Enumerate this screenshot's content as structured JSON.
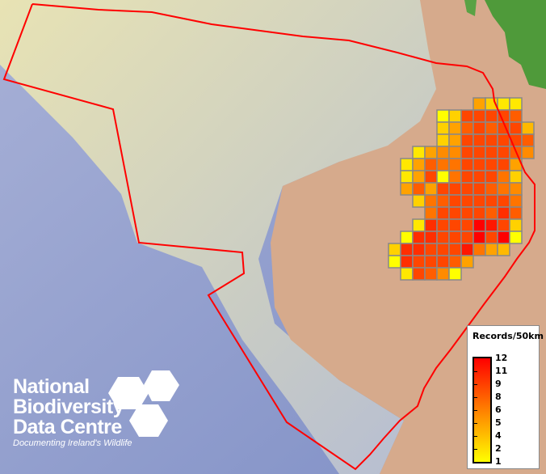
{
  "legend": {
    "title": "Records/50km",
    "labels": [
      "12",
      "11",
      "9",
      "8",
      "6",
      "5",
      "4",
      "2",
      "1"
    ],
    "color_min": "#ffff00",
    "color_mid": "#ff8000",
    "color_max": "#ff0000"
  },
  "logo": {
    "line1": "National",
    "line2": "Biodiversity",
    "line3": "Data Centre",
    "tagline": "Documenting Ireland's Wildlife"
  },
  "colors": {
    "boundary": "#ff0000",
    "grid_outline": "#888888",
    "ocean": "#8f9ccc",
    "shelf": "#e6e0b0",
    "land": "#d6aa8c",
    "vegetation": "#4f9a3a"
  },
  "grid_records": [
    [
      0,
      0,
      0,
      0,
      0,
      0,
      0,
      5,
      3,
      2,
      2,
      0
    ],
    [
      0,
      0,
      0,
      0,
      1,
      3,
      9,
      9,
      9,
      9,
      8,
      0
    ],
    [
      0,
      0,
      0,
      0,
      3,
      5,
      8,
      9,
      8,
      9,
      9,
      4
    ],
    [
      0,
      0,
      0,
      0,
      3,
      5,
      9,
      9,
      9,
      9,
      9,
      8
    ],
    [
      0,
      0,
      2,
      5,
      6,
      6,
      9,
      9,
      9,
      9,
      8,
      6
    ],
    [
      0,
      2,
      5,
      8,
      7,
      7,
      9,
      9,
      9,
      9,
      5,
      0
    ],
    [
      0,
      2,
      5,
      9,
      1,
      7,
      9,
      9,
      9,
      7,
      3,
      0
    ],
    [
      0,
      5,
      8,
      5,
      9,
      9,
      9,
      9,
      8,
      7,
      6,
      0
    ],
    [
      0,
      0,
      3,
      7,
      8,
      9,
      9,
      9,
      9,
      9,
      7,
      0
    ],
    [
      0,
      0,
      0,
      7,
      9,
      9,
      9,
      9,
      8,
      10,
      8,
      0
    ],
    [
      0,
      0,
      2,
      10,
      9,
      9,
      9,
      12,
      11,
      9,
      3,
      0
    ],
    [
      0,
      1,
      10,
      10,
      9,
      9,
      9,
      12,
      9,
      12,
      1,
      0
    ],
    [
      3,
      10,
      10,
      9,
      9,
      9,
      11,
      7,
      5,
      4,
      0,
      0
    ],
    [
      1,
      10,
      9,
      9,
      9,
      8,
      5,
      0,
      0,
      0,
      0,
      0
    ],
    [
      0,
      2,
      9,
      8,
      6,
      1,
      0,
      0,
      0,
      0,
      0,
      0
    ]
  ]
}
